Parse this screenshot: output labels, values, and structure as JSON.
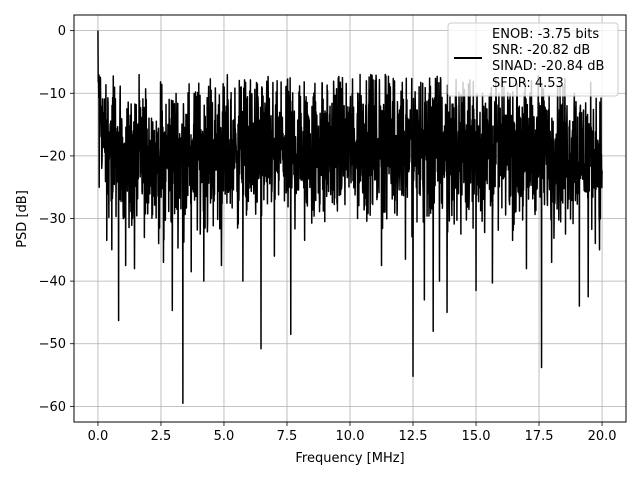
{
  "chart_data": {
    "type": "line",
    "xlabel": "Frequency [MHz]",
    "ylabel": "PSD [dB]",
    "xlim": [
      -0.95,
      20.95
    ],
    "ylim": [
      -62.5,
      2.5
    ],
    "xticks": [
      0.0,
      2.5,
      5.0,
      7.5,
      10.0,
      12.5,
      15.0,
      17.5,
      20.0
    ],
    "xtick_labels": [
      "0.0",
      "2.5",
      "5.0",
      "7.5",
      "10.0",
      "12.5",
      "15.0",
      "17.5",
      "20.0"
    ],
    "yticks": [
      0,
      -10,
      -20,
      -30,
      -40,
      -50,
      -60
    ],
    "ytick_labels": [
      "0",
      "−10",
      "−20",
      "−30",
      "−40",
      "−50",
      "−60"
    ],
    "grid": true,
    "legend_position": "top-right",
    "legend_lines": [
      "ENOB: -3.75 bits",
      "SNR: -20.82 dB",
      "SINAD: -20.84 dB",
      "SFDR: 4.53"
    ],
    "series": [
      {
        "color": "#000000",
        "x": [
          0.0,
          0.02,
          0.05,
          0.08,
          0.12,
          0.2,
          0.3,
          0.4,
          0.5,
          0.6,
          0.75,
          0.9,
          1.0,
          1.5,
          2.0,
          2.5,
          3.0,
          3.37,
          4.0,
          5.0,
          6.0,
          6.5,
          7.0,
          7.65,
          8.0,
          9.0,
          10.0,
          11.0,
          12.0,
          12.5,
          13.0,
          13.3,
          14.0,
          15.0,
          16.0,
          17.0,
          17.6,
          18.0,
          19.0,
          20.0
        ],
        "y": [
          0.0,
          -8.0,
          -10.0,
          -12.0,
          -14.0,
          -16.0,
          -17.5,
          -18.0,
          -18.5,
          -19.0,
          -19.5,
          -20.0,
          -20.0,
          -20.5,
          -20.5,
          -20.5,
          -20.0,
          -20.0,
          -19.5,
          -19.5,
          -19.0,
          -19.0,
          -19.0,
          -19.0,
          -18.5,
          -18.5,
          -18.0,
          -18.0,
          -18.5,
          -18.5,
          -18.5,
          -18.5,
          -19.0,
          -19.0,
          -19.0,
          -19.0,
          -19.0,
          -19.0,
          -19.5,
          -20.0
        ],
        "spread": [
          0,
          10,
          12,
          13,
          14,
          15,
          16,
          16,
          16,
          16,
          16,
          17,
          17,
          18,
          18,
          18,
          18,
          18,
          18,
          18,
          18,
          18,
          18,
          18,
          18,
          18,
          18,
          18,
          18,
          18,
          18,
          18,
          18,
          18,
          18,
          17,
          17,
          17,
          17,
          16
        ],
        "dips": [
          {
            "x": 0.05,
            "y": -25.0
          },
          {
            "x": 0.35,
            "y": -33.5
          },
          {
            "x": 0.55,
            "y": -35.0
          },
          {
            "x": 0.82,
            "y": -46.3
          },
          {
            "x": 1.1,
            "y": -37.5
          },
          {
            "x": 1.45,
            "y": -38.0
          },
          {
            "x": 2.6,
            "y": -37.0
          },
          {
            "x": 2.95,
            "y": -44.7
          },
          {
            "x": 3.37,
            "y": -59.5
          },
          {
            "x": 3.7,
            "y": -38.5
          },
          {
            "x": 4.2,
            "y": -40.0
          },
          {
            "x": 4.9,
            "y": -37.5
          },
          {
            "x": 5.75,
            "y": -40.0
          },
          {
            "x": 6.47,
            "y": -50.8
          },
          {
            "x": 7.0,
            "y": -36.0
          },
          {
            "x": 7.65,
            "y": -48.5
          },
          {
            "x": 8.2,
            "y": -33.5
          },
          {
            "x": 9.0,
            "y": -30.5
          },
          {
            "x": 10.3,
            "y": -30.0
          },
          {
            "x": 11.25,
            "y": -37.5
          },
          {
            "x": 12.2,
            "y": -36.5
          },
          {
            "x": 12.5,
            "y": -55.2
          },
          {
            "x": 12.95,
            "y": -43.0
          },
          {
            "x": 13.3,
            "y": -48.0
          },
          {
            "x": 13.55,
            "y": -40.0
          },
          {
            "x": 13.85,
            "y": -45.0
          },
          {
            "x": 14.4,
            "y": -32.5
          },
          {
            "x": 15.0,
            "y": -41.5
          },
          {
            "x": 15.65,
            "y": -40.3
          },
          {
            "x": 16.45,
            "y": -33.5
          },
          {
            "x": 17.0,
            "y": -38.0
          },
          {
            "x": 17.6,
            "y": -53.8
          },
          {
            "x": 18.0,
            "y": -37.0
          },
          {
            "x": 18.55,
            "y": -32.5
          },
          {
            "x": 19.1,
            "y": -44.0
          },
          {
            "x": 19.45,
            "y": -42.5
          },
          {
            "x": 19.9,
            "y": -35.0
          }
        ],
        "peaks": [
          {
            "x": 0.0,
            "y": 0.0
          },
          {
            "x": 0.01,
            "y": -8.2
          },
          {
            "x": 3.9,
            "y": -10.5
          },
          {
            "x": 6.5,
            "y": -9.0
          },
          {
            "x": 8.9,
            "y": -8.5
          },
          {
            "x": 9.7,
            "y": -7.5
          },
          {
            "x": 10.4,
            "y": -7.0
          },
          {
            "x": 11.4,
            "y": -7.0
          },
          {
            "x": 11.6,
            "y": -9.0
          },
          {
            "x": 13.6,
            "y": -8.0
          },
          {
            "x": 14.7,
            "y": -8.5
          },
          {
            "x": 15.8,
            "y": -9.0
          },
          {
            "x": 17.2,
            "y": -8.0
          },
          {
            "x": 18.9,
            "y": -10.0
          }
        ]
      }
    ]
  }
}
